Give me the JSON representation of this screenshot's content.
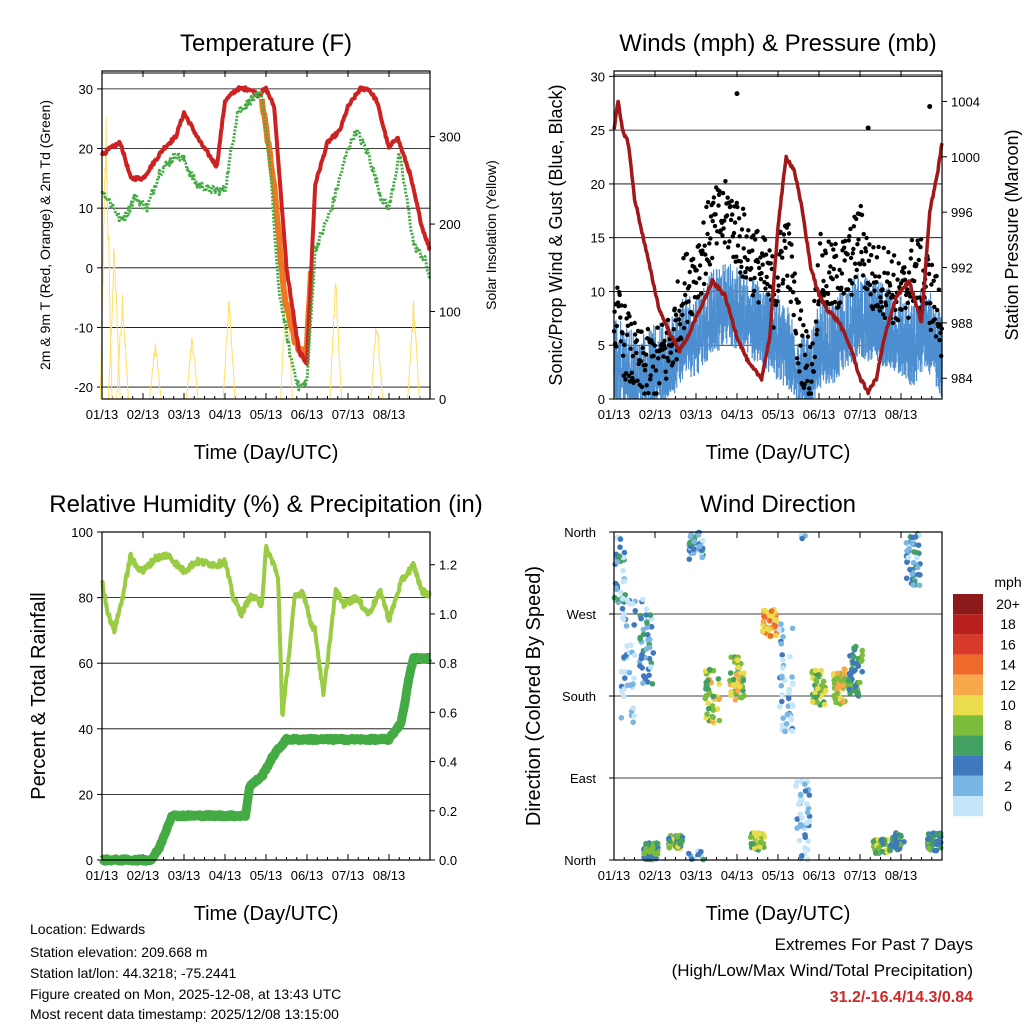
{
  "colors": {
    "temp2m": "#cc2222",
    "temp9m": "#ee7722",
    "dewpoint": "#44aa44",
    "solar": "#ffe066",
    "wind_sonic": "#4d8fd0",
    "wind_gust": "#000000",
    "pressure": "#a01818",
    "rh": "#99cc44",
    "precip": "#44aa44"
  },
  "chart_data": [
    {
      "type": "line",
      "title": "Temperature (F)",
      "xlabel": "Time (Day/UTC)",
      "ylabel": "2m & 9m T (Red, Orange) & 2m Td (Green)",
      "y2label": "Solar Insolation (Yellow)",
      "x_tick_labels": [
        "01/13",
        "02/13",
        "03/13",
        "04/13",
        "05/13",
        "06/13",
        "07/13",
        "08/13"
      ],
      "ylim": [
        -22,
        33
      ],
      "y_ticks": [
        -20,
        -10,
        0,
        10,
        20,
        30
      ],
      "y2lim": [
        0,
        375
      ],
      "y2_ticks": [
        0,
        100,
        200,
        300
      ],
      "series": [
        {
          "name": "2m T",
          "x": [
            0,
            0.2,
            0.45,
            0.7,
            1,
            1.5,
            1.8,
            2,
            2.4,
            2.8,
            3,
            3.3,
            3.6,
            3.8,
            4,
            4.2,
            4.5,
            4.8,
            5,
            5.2,
            5.5,
            5.8,
            6,
            6.3,
            6.5,
            6.7,
            7,
            7.2,
            7.5,
            7.8,
            8
          ],
          "values": [
            19,
            20,
            21,
            15,
            15,
            20,
            22,
            26,
            21,
            17,
            28,
            30,
            30,
            29,
            30,
            27,
            0,
            -14,
            -16,
            14,
            21,
            23,
            27,
            30,
            30,
            28,
            20,
            22,
            16,
            7,
            3
          ]
        },
        {
          "name": "9m T",
          "x": [
            3.9,
            4.2,
            4.45,
            4.7,
            4.9,
            5.0,
            5.1
          ],
          "values": [
            28,
            14,
            -5,
            -12,
            -15,
            -13,
            0
          ]
        },
        {
          "name": "2m Td",
          "x": [
            0,
            0.3,
            0.45,
            0.6,
            0.8,
            1.1,
            1.4,
            1.8,
            2,
            2.3,
            2.7,
            3,
            3.3,
            3.6,
            3.9,
            4.1,
            4.3,
            4.6,
            4.8,
            5,
            5.2,
            5.6,
            6,
            6.2,
            6.5,
            6.8,
            7,
            7.25,
            7.4,
            7.6,
            7.9,
            8
          ],
          "values": [
            13,
            10,
            8,
            9,
            12,
            10,
            16,
            19,
            18,
            14,
            13,
            13,
            26,
            28,
            29,
            17,
            -3,
            -15,
            -20,
            -19,
            3,
            10,
            20,
            23,
            19,
            12,
            10,
            19,
            13,
            4,
            1,
            -2
          ]
        },
        {
          "name": "Solar Insolation",
          "axis": "y2",
          "peaks": [
            [
              0.1,
              340
            ],
            [
              0.3,
              190
            ],
            [
              0.5,
              130
            ],
            [
              1.3,
              70
            ],
            [
              2.2,
              80
            ],
            [
              3.1,
              130
            ],
            [
              4.5,
              160
            ],
            [
              5.7,
              150
            ],
            [
              6.7,
              100
            ],
            [
              7.6,
              120
            ]
          ]
        }
      ]
    },
    {
      "type": "line",
      "title": "Winds (mph) & Pressure (mb)",
      "xlabel": "Time (Day/UTC)",
      "ylabel": "Sonic/Prop Wind & Gust (Blue, Black)",
      "y2label": "Station Pressure (Maroon)",
      "x_tick_labels": [
        "01/13",
        "02/13",
        "03/13",
        "04/13",
        "05/13",
        "06/13",
        "07/13",
        "08/13"
      ],
      "ylim": [
        0,
        30.5
      ],
      "y_ticks": [
        0,
        5,
        10,
        15,
        20,
        25,
        30
      ],
      "y2lim": [
        982.5,
        1006.2
      ],
      "y2_ticks": [
        984,
        988,
        992,
        996,
        1000,
        1004
      ],
      "series": [
        {
          "name": "Sonic/Prop Wind",
          "x": [
            0,
            0.3,
            0.6,
            1,
            1.4,
            1.7,
            2,
            2.4,
            2.8,
            3.2,
            3.6,
            3.9,
            4.2,
            4.5,
            4.8,
            5,
            5.3,
            5.7,
            6,
            6.3,
            6.7,
            7,
            7.3,
            7.6,
            8
          ],
          "values": [
            3,
            2,
            1,
            2,
            3,
            5,
            5,
            7,
            8,
            7,
            6,
            5,
            4,
            2,
            1,
            4,
            4,
            6,
            7,
            6,
            6,
            5,
            4,
            6,
            3
          ]
        },
        {
          "name": "Gust",
          "x": [
            0,
            0.3,
            0.6,
            1,
            1.4,
            1.7,
            2,
            2.4,
            2.8,
            3.2,
            3.6,
            3.9,
            4.2,
            4.5,
            4.8,
            5,
            5.3,
            5.7,
            6,
            6.3,
            6.7,
            7,
            7.3,
            7.6,
            8
          ],
          "values": [
            8,
            5,
            3,
            3,
            5,
            10,
            12,
            16,
            17,
            14,
            12,
            10,
            15,
            6,
            2,
            12,
            11,
            12,
            15,
            11,
            11,
            9,
            12,
            11,
            7
          ]
        },
        {
          "name": "Station Pressure",
          "axis": "y2",
          "x": [
            0,
            0.1,
            0.2,
            0.35,
            0.5,
            0.8,
            1.1,
            1.4,
            1.6,
            1.8,
            2.1,
            2.4,
            2.7,
            3,
            3.3,
            3.6,
            3.8,
            4.0,
            4.2,
            4.4,
            4.6,
            4.8,
            5,
            5.2,
            5.5,
            5.8,
            6.0,
            6.2,
            6.4,
            6.6,
            6.9,
            7.2,
            7.5,
            7.7,
            7.9,
            8
          ],
          "values": [
            1002,
            1004,
            1002,
            1001,
            997,
            993,
            989,
            987,
            986,
            987,
            989,
            991,
            990,
            987,
            985,
            984,
            987,
            995,
            1000,
            999,
            996,
            992,
            990,
            989,
            988,
            986,
            984,
            983,
            984,
            987,
            990,
            991,
            988,
            996,
            999,
            1001
          ]
        }
      ],
      "outlier_gusts": [
        [
          3.0,
          28.4
        ],
        [
          6.2,
          25.2
        ],
        [
          7.7,
          27.2
        ]
      ]
    },
    {
      "type": "line",
      "title": "Relative Humidity (%) & Precipitation (in)",
      "xlabel": "Time (Day/UTC)",
      "ylabel": "Percent & Total Rainfall",
      "x_tick_labels": [
        "01/13",
        "02/13",
        "03/13",
        "04/13",
        "05/13",
        "06/13",
        "07/13",
        "08/13"
      ],
      "ylim": [
        0,
        100
      ],
      "y_ticks": [
        0,
        20,
        40,
        60,
        80,
        100
      ],
      "y2lim": [
        0,
        1.333
      ],
      "y2_ticks": [
        0.0,
        0.2,
        0.4,
        0.6,
        0.8,
        1.0,
        1.2
      ],
      "series": [
        {
          "name": "Relative Humidity",
          "x": [
            0,
            0.15,
            0.3,
            0.5,
            0.7,
            0.8,
            1.0,
            1.3,
            1.6,
            2.0,
            2.3,
            2.8,
            3.0,
            3.2,
            3.4,
            3.6,
            3.7,
            3.9,
            4.0,
            4.2,
            4.3,
            4.4,
            4.7,
            4.9,
            5.1,
            5.2,
            5.4,
            5.7,
            5.9,
            6.2,
            6.5,
            6.8,
            7.0,
            7.3,
            7.6,
            7.8,
            8
          ],
          "values": [
            85,
            75,
            70,
            80,
            93,
            90,
            88,
            92,
            93,
            88,
            91,
            90,
            91,
            80,
            75,
            80,
            80,
            78,
            95,
            90,
            85,
            43,
            80,
            82,
            72,
            70,
            50,
            82,
            78,
            80,
            75,
            82,
            73,
            85,
            90,
            82,
            81
          ]
        },
        {
          "name": "Total Rainfall",
          "axis": "y2",
          "x": [
            0,
            1.2,
            1.4,
            1.7,
            3.5,
            3.6,
            3.9,
            4.2,
            4.5,
            4.6,
            5.3,
            7.0,
            7.3,
            7.5,
            7.6,
            8
          ],
          "values": [
            0,
            0,
            0.05,
            0.18,
            0.18,
            0.3,
            0.34,
            0.43,
            0.49,
            0.49,
            0.49,
            0.49,
            0.56,
            0.75,
            0.82,
            0.82
          ]
        }
      ]
    },
    {
      "type": "scatter",
      "title": "Wind Direction",
      "xlabel": "Time (Day/UTC)",
      "ylabel": "Direction (Colored By Speed)",
      "x_tick_labels": [
        "01/13",
        "02/13",
        "03/13",
        "04/13",
        "05/13",
        "06/13",
        "07/13",
        "08/13"
      ],
      "y_tick_labels": [
        "North",
        "East",
        "South",
        "West",
        "North"
      ],
      "ylim": [
        0,
        360
      ],
      "colorbar": {
        "title": "mph",
        "labels": [
          "20+",
          "18",
          "16",
          "14",
          "12",
          "10",
          "8",
          "6",
          "4",
          "2",
          "0"
        ],
        "colors": [
          "#8c1a1a",
          "#b81f1f",
          "#d73a2a",
          "#ee6a2a",
          "#f6a84a",
          "#eadc4a",
          "#7cbc3c",
          "#42a063",
          "#3f78bd",
          "#7ab6e4",
          "#c4e6f8"
        ]
      },
      "clusters": [
        {
          "x": 0.1,
          "dir": 320,
          "spread": 40,
          "speed": 3
        },
        {
          "x": 0.35,
          "dir": 220,
          "spread": 70,
          "speed": 1
        },
        {
          "x": 0.8,
          "dir": 240,
          "spread": 50,
          "speed": 3
        },
        {
          "x": 0.9,
          "dir": 10,
          "spread": 10,
          "speed": 6
        },
        {
          "x": 1.5,
          "dir": 20,
          "spread": 8,
          "speed": 7
        },
        {
          "x": 2.0,
          "dir": 350,
          "spread": 20,
          "speed": 3
        },
        {
          "x": 2.4,
          "dir": 180,
          "spread": 30,
          "speed": 9
        },
        {
          "x": 3.0,
          "dir": 200,
          "spread": 25,
          "speed": 9
        },
        {
          "x": 3.5,
          "dir": 20,
          "spread": 10,
          "speed": 8
        },
        {
          "x": 3.8,
          "dir": 260,
          "spread": 15,
          "speed": 12
        },
        {
          "x": 4.2,
          "dir": 200,
          "spread": 60,
          "speed": 1
        },
        {
          "x": 4.6,
          "dir": 40,
          "spread": 50,
          "speed": 1
        },
        {
          "x": 5.0,
          "dir": 190,
          "spread": 20,
          "speed": 8
        },
        {
          "x": 5.5,
          "dir": 190,
          "spread": 20,
          "speed": 10
        },
        {
          "x": 5.9,
          "dir": 210,
          "spread": 30,
          "speed": 6
        },
        {
          "x": 6.5,
          "dir": 15,
          "spread": 8,
          "speed": 7
        },
        {
          "x": 6.9,
          "dir": 20,
          "spread": 10,
          "speed": 6
        },
        {
          "x": 7.3,
          "dir": 330,
          "spread": 30,
          "speed": 3
        },
        {
          "x": 7.8,
          "dir": 20,
          "spread": 10,
          "speed": 6
        }
      ]
    }
  ],
  "station": {
    "location": "Location: Edwards",
    "elevation": "Station elevation: 209.668 m",
    "latlon": "Station lat/lon: 44.3218; -75.2441",
    "created": "Figure created on Mon, 2025-12-08, at 13:43 UTC",
    "timestamp": "Most recent data timestamp: 2025/12/08 13:15:00"
  },
  "extremes": {
    "title": "Extremes For Past 7 Days",
    "subtitle": "(High/Low/Max Wind/Total Precipitation)",
    "values": "31.2/-16.4/14.3/0.84"
  }
}
